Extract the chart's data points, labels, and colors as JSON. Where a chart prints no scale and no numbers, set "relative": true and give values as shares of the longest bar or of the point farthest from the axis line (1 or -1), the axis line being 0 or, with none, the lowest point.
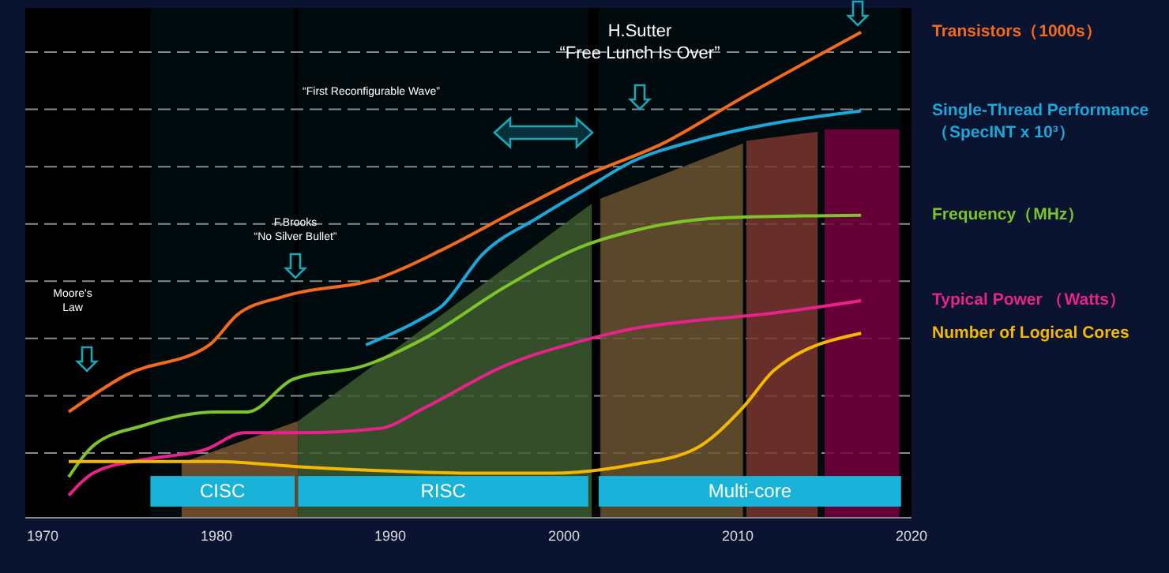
{
  "chart_data": {
    "type": "line",
    "relative": true,
    "xlim": [
      1969,
      2020
    ],
    "xticks": [
      1970,
      1980,
      1990,
      2000,
      2010,
      2020
    ],
    "grid": "y",
    "legend": "right",
    "marker": "none",
    "series": [
      {
        "type": "area",
        "color": "#7a5530",
        "x": [
          1978,
          1984.7
        ],
        "values": [
          0.113,
          0.199
        ]
      },
      {
        "type": "area",
        "color": "#3d5a30",
        "x": [
          1984.7,
          2001.6
        ],
        "values": [
          0.199,
          0.647
        ]
      },
      {
        "type": "area",
        "color": "#6b5330",
        "x": [
          2002.1,
          2010.3
        ],
        "values": [
          0.657,
          0.771
        ]
      },
      {
        "type": "area",
        "color": "#7a3530",
        "x": [
          2010.5,
          2014.6
        ],
        "values": [
          0.776,
          0.795
        ]
      },
      {
        "type": "area",
        "color": "#780040",
        "x": [
          2015,
          2019.3
        ],
        "values": [
          0.8,
          0.8
        ]
      },
      {
        "name": "Transistors（1000s）",
        "color": "#f26a1b",
        "x": [
          1971.5,
          1974.8,
          1979.6,
          1981.2,
          1983.9,
          1989.4,
          1993,
          1997.5,
          2001.2,
          2005.7,
          2010.3,
          2017.1
        ],
        "values": [
          0.218,
          0.294,
          0.356,
          0.418,
          0.456,
          0.494,
          0.552,
          0.637,
          0.704,
          0.771,
          0.866,
          1.0
        ]
      },
      {
        "name": "Single-Thread Performance （SpecINT x 10³）",
        "color": "#1aa7d9",
        "x": [
          1988.6,
          1991.6,
          1993,
          1995.3,
          1998.5,
          2001.2,
          2003.9,
          2007.5,
          2010.3,
          2017.1
        ],
        "values": [
          0.356,
          0.406,
          0.437,
          0.542,
          0.618,
          0.676,
          0.733,
          0.776,
          0.8,
          0.838
        ]
      },
      {
        "name": "Frequency（MHz）",
        "color": "#7dc42b",
        "x": [
          1971.5,
          1973,
          1975.7,
          1980,
          1981.8,
          1984.4,
          1988.5,
          1992,
          1996.6,
          2001.2,
          2003.9,
          2005.7,
          2009.4,
          2017.1
        ],
        "values": [
          0.084,
          0.151,
          0.189,
          0.218,
          0.218,
          0.285,
          0.313,
          0.37,
          0.475,
          0.561,
          0.59,
          0.604,
          0.618,
          0.623
        ]
      },
      {
        "name": "Typical Power （Watts）",
        "color": "#e8228a",
        "x": [
          1971.5,
          1973,
          1975.7,
          1979.4,
          1981.6,
          1984.8,
          1989.4,
          1992,
          1996.6,
          2001.2,
          2003.9,
          2007.5,
          2011.2,
          2017.1
        ],
        "values": [
          0.046,
          0.094,
          0.119,
          0.141,
          0.175,
          0.175,
          0.184,
          0.227,
          0.313,
          0.366,
          0.389,
          0.406,
          0.418,
          0.447
        ]
      },
      {
        "name": "Number of Logical Cores",
        "color": "#f5b800",
        "x": [
          1971.5,
          1980,
          1984.8,
          1990.3,
          1994.8,
          1999.4,
          2003.9,
          2007.5,
          2010.3,
          2012.1,
          2017.1
        ],
        "values": [
          0.116,
          0.116,
          0.105,
          0.096,
          0.092,
          0.092,
          0.109,
          0.141,
          0.227,
          0.304,
          0.38
        ]
      }
    ],
    "bands": [
      {
        "axis": "x",
        "from": 1976.2,
        "to": 1984.5,
        "label": "CISC",
        "color": "#19b3d9"
      },
      {
        "axis": "x",
        "from": 1984.7,
        "to": 2001.4,
        "label": "RISC",
        "color": "#19b3d9"
      },
      {
        "axis": "x",
        "from": 2002,
        "to": 2019.4,
        "label": "Multi-core",
        "color": "#19b3d9"
      }
    ],
    "annotations": [
      "Moore's Law",
      "F.Brooks “No Silver Bullet”",
      "“First Reconfigurable Wave”",
      "H.Sutter “Free Lunch Is Over”"
    ]
  }
}
